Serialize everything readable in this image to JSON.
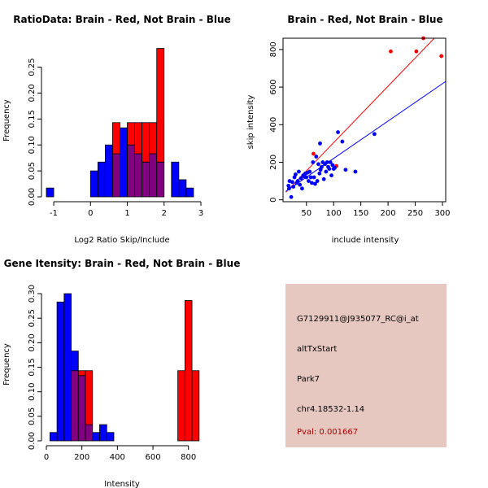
{
  "colors": {
    "red": "#ff0000",
    "blue": "#0000ff",
    "overlap": "#800080",
    "panel_bg": "#e6c8c0",
    "pval": "#b00000"
  },
  "chart_data": [
    {
      "id": "ratio",
      "type": "bar",
      "title": "RatioData: Brain - Red, Not Brain - Blue",
      "xlabel": "Log2 Ratio Skip/Include",
      "ylabel": "Frequency",
      "xlim": [
        -1.2,
        3.0
      ],
      "ylim": [
        0,
        0.29
      ],
      "xticks": [
        -1,
        0,
        1,
        2,
        3
      ],
      "yticks": [
        0.0,
        0.05,
        0.1,
        0.15,
        0.2,
        0.25
      ],
      "bin_width": 0.2,
      "series": [
        {
          "name": "Brain",
          "color": "red",
          "bins": [
            {
              "x": 0.6,
              "y": 0.143
            },
            {
              "x": 1.0,
              "y": 0.143
            },
            {
              "x": 1.2,
              "y": 0.143
            },
            {
              "x": 1.4,
              "y": 0.143
            },
            {
              "x": 1.6,
              "y": 0.143
            },
            {
              "x": 1.8,
              "y": 0.286
            }
          ]
        },
        {
          "name": "Not Brain",
          "color": "blue",
          "bins": [
            {
              "x": -1.2,
              "y": 0.017
            },
            {
              "x": 0.0,
              "y": 0.05
            },
            {
              "x": 0.2,
              "y": 0.067
            },
            {
              "x": 0.4,
              "y": 0.1
            },
            {
              "x": 0.6,
              "y": 0.083
            },
            {
              "x": 0.8,
              "y": 0.133
            },
            {
              "x": 1.0,
              "y": 0.1
            },
            {
              "x": 1.2,
              "y": 0.083
            },
            {
              "x": 1.4,
              "y": 0.067
            },
            {
              "x": 1.6,
              "y": 0.083
            },
            {
              "x": 1.8,
              "y": 0.067
            },
            {
              "x": 2.2,
              "y": 0.067
            },
            {
              "x": 2.4,
              "y": 0.033
            },
            {
              "x": 2.6,
              "y": 0.017
            }
          ]
        }
      ]
    },
    {
      "id": "scatter",
      "type": "scatter",
      "title": "Brain - Red, Not Brain - Blue",
      "xlabel": "include intensity",
      "ylabel": "skip intensity",
      "xlim": [
        7,
        306
      ],
      "ylim": [
        -10,
        860
      ],
      "xticks": [
        50,
        100,
        150,
        200,
        250,
        300
      ],
      "yticks": [
        0,
        200,
        400,
        600,
        800
      ],
      "series": [
        {
          "name": "Brain",
          "color": "red",
          "points": [
            [
              63,
              245
            ],
            [
              105,
              180
            ],
            [
              205,
              790
            ],
            [
              252,
              790
            ],
            [
              265,
              860
            ],
            [
              298,
              765
            ]
          ],
          "fit_line": [
            [
              12,
              40
            ],
            [
              285,
              860
            ]
          ]
        },
        {
          "name": "Not Brain",
          "color": "blue",
          "points": [
            [
              17,
              75
            ],
            [
              18,
              60
            ],
            [
              19,
              100
            ],
            [
              22,
              15
            ],
            [
              24,
              95
            ],
            [
              26,
              70
            ],
            [
              28,
              120
            ],
            [
              30,
              135
            ],
            [
              32,
              90
            ],
            [
              34,
              100
            ],
            [
              36,
              150
            ],
            [
              38,
              80
            ],
            [
              40,
              115
            ],
            [
              42,
              60
            ],
            [
              44,
              130
            ],
            [
              46,
              125
            ],
            [
              48,
              140
            ],
            [
              50,
              120
            ],
            [
              52,
              145
            ],
            [
              54,
              100
            ],
            [
              56,
              150
            ],
            [
              58,
              120
            ],
            [
              60,
              90
            ],
            [
              62,
              200
            ],
            [
              64,
              120
            ],
            [
              66,
              85
            ],
            [
              68,
              230
            ],
            [
              70,
              100
            ],
            [
              72,
              190
            ],
            [
              74,
              140
            ],
            [
              75,
              300
            ],
            [
              76,
              160
            ],
            [
              78,
              175
            ],
            [
              80,
              200
            ],
            [
              82,
              110
            ],
            [
              84,
              190
            ],
            [
              86,
              150
            ],
            [
              88,
              200
            ],
            [
              90,
              175
            ],
            [
              92,
              165
            ],
            [
              94,
              200
            ],
            [
              96,
              130
            ],
            [
              98,
              185
            ],
            [
              100,
              165
            ],
            [
              102,
              170
            ],
            [
              108,
              360
            ],
            [
              116,
              310
            ],
            [
              122,
              160
            ],
            [
              140,
              150
            ],
            [
              175,
              350
            ]
          ],
          "fit_line": [
            [
              12,
              45
            ],
            [
              306,
              630
            ]
          ]
        }
      ]
    },
    {
      "id": "intensity",
      "type": "bar",
      "title": "Gene Itensity: Brain - Red, Not Brain - Blue",
      "xlabel": "Intensity",
      "ylabel": "Frequency",
      "xlim": [
        0,
        870
      ],
      "ylim": [
        0,
        0.315
      ],
      "xticks": [
        0,
        200,
        400,
        600,
        800
      ],
      "yticks": [
        0.0,
        0.05,
        0.1,
        0.15,
        0.2,
        0.25,
        0.3
      ],
      "bin_width": 40,
      "series": [
        {
          "name": "Brain",
          "color": "red",
          "bins": [
            {
              "x": 140,
              "y": 0.143
            },
            {
              "x": 180,
              "y": 0.143
            },
            {
              "x": 220,
              "y": 0.143
            },
            {
              "x": 740,
              "y": 0.143
            },
            {
              "x": 780,
              "y": 0.286
            },
            {
              "x": 820,
              "y": 0.143
            }
          ]
        },
        {
          "name": "Not Brain",
          "color": "blue",
          "bins": [
            {
              "x": 20,
              "y": 0.017
            },
            {
              "x": 60,
              "y": 0.283
            },
            {
              "x": 100,
              "y": 0.3
            },
            {
              "x": 140,
              "y": 0.183
            },
            {
              "x": 180,
              "y": 0.133
            },
            {
              "x": 220,
              "y": 0.033
            },
            {
              "x": 260,
              "y": 0.017
            },
            {
              "x": 300,
              "y": 0.033
            },
            {
              "x": 340,
              "y": 0.017
            }
          ]
        }
      ]
    }
  ],
  "info": {
    "probe_id": "G7129911@J935077_RC@i_at",
    "event_type": "altTxStart",
    "gene": "Park7",
    "location": "chr4.18532-1.14",
    "pval": "Pval: 0.001667"
  }
}
